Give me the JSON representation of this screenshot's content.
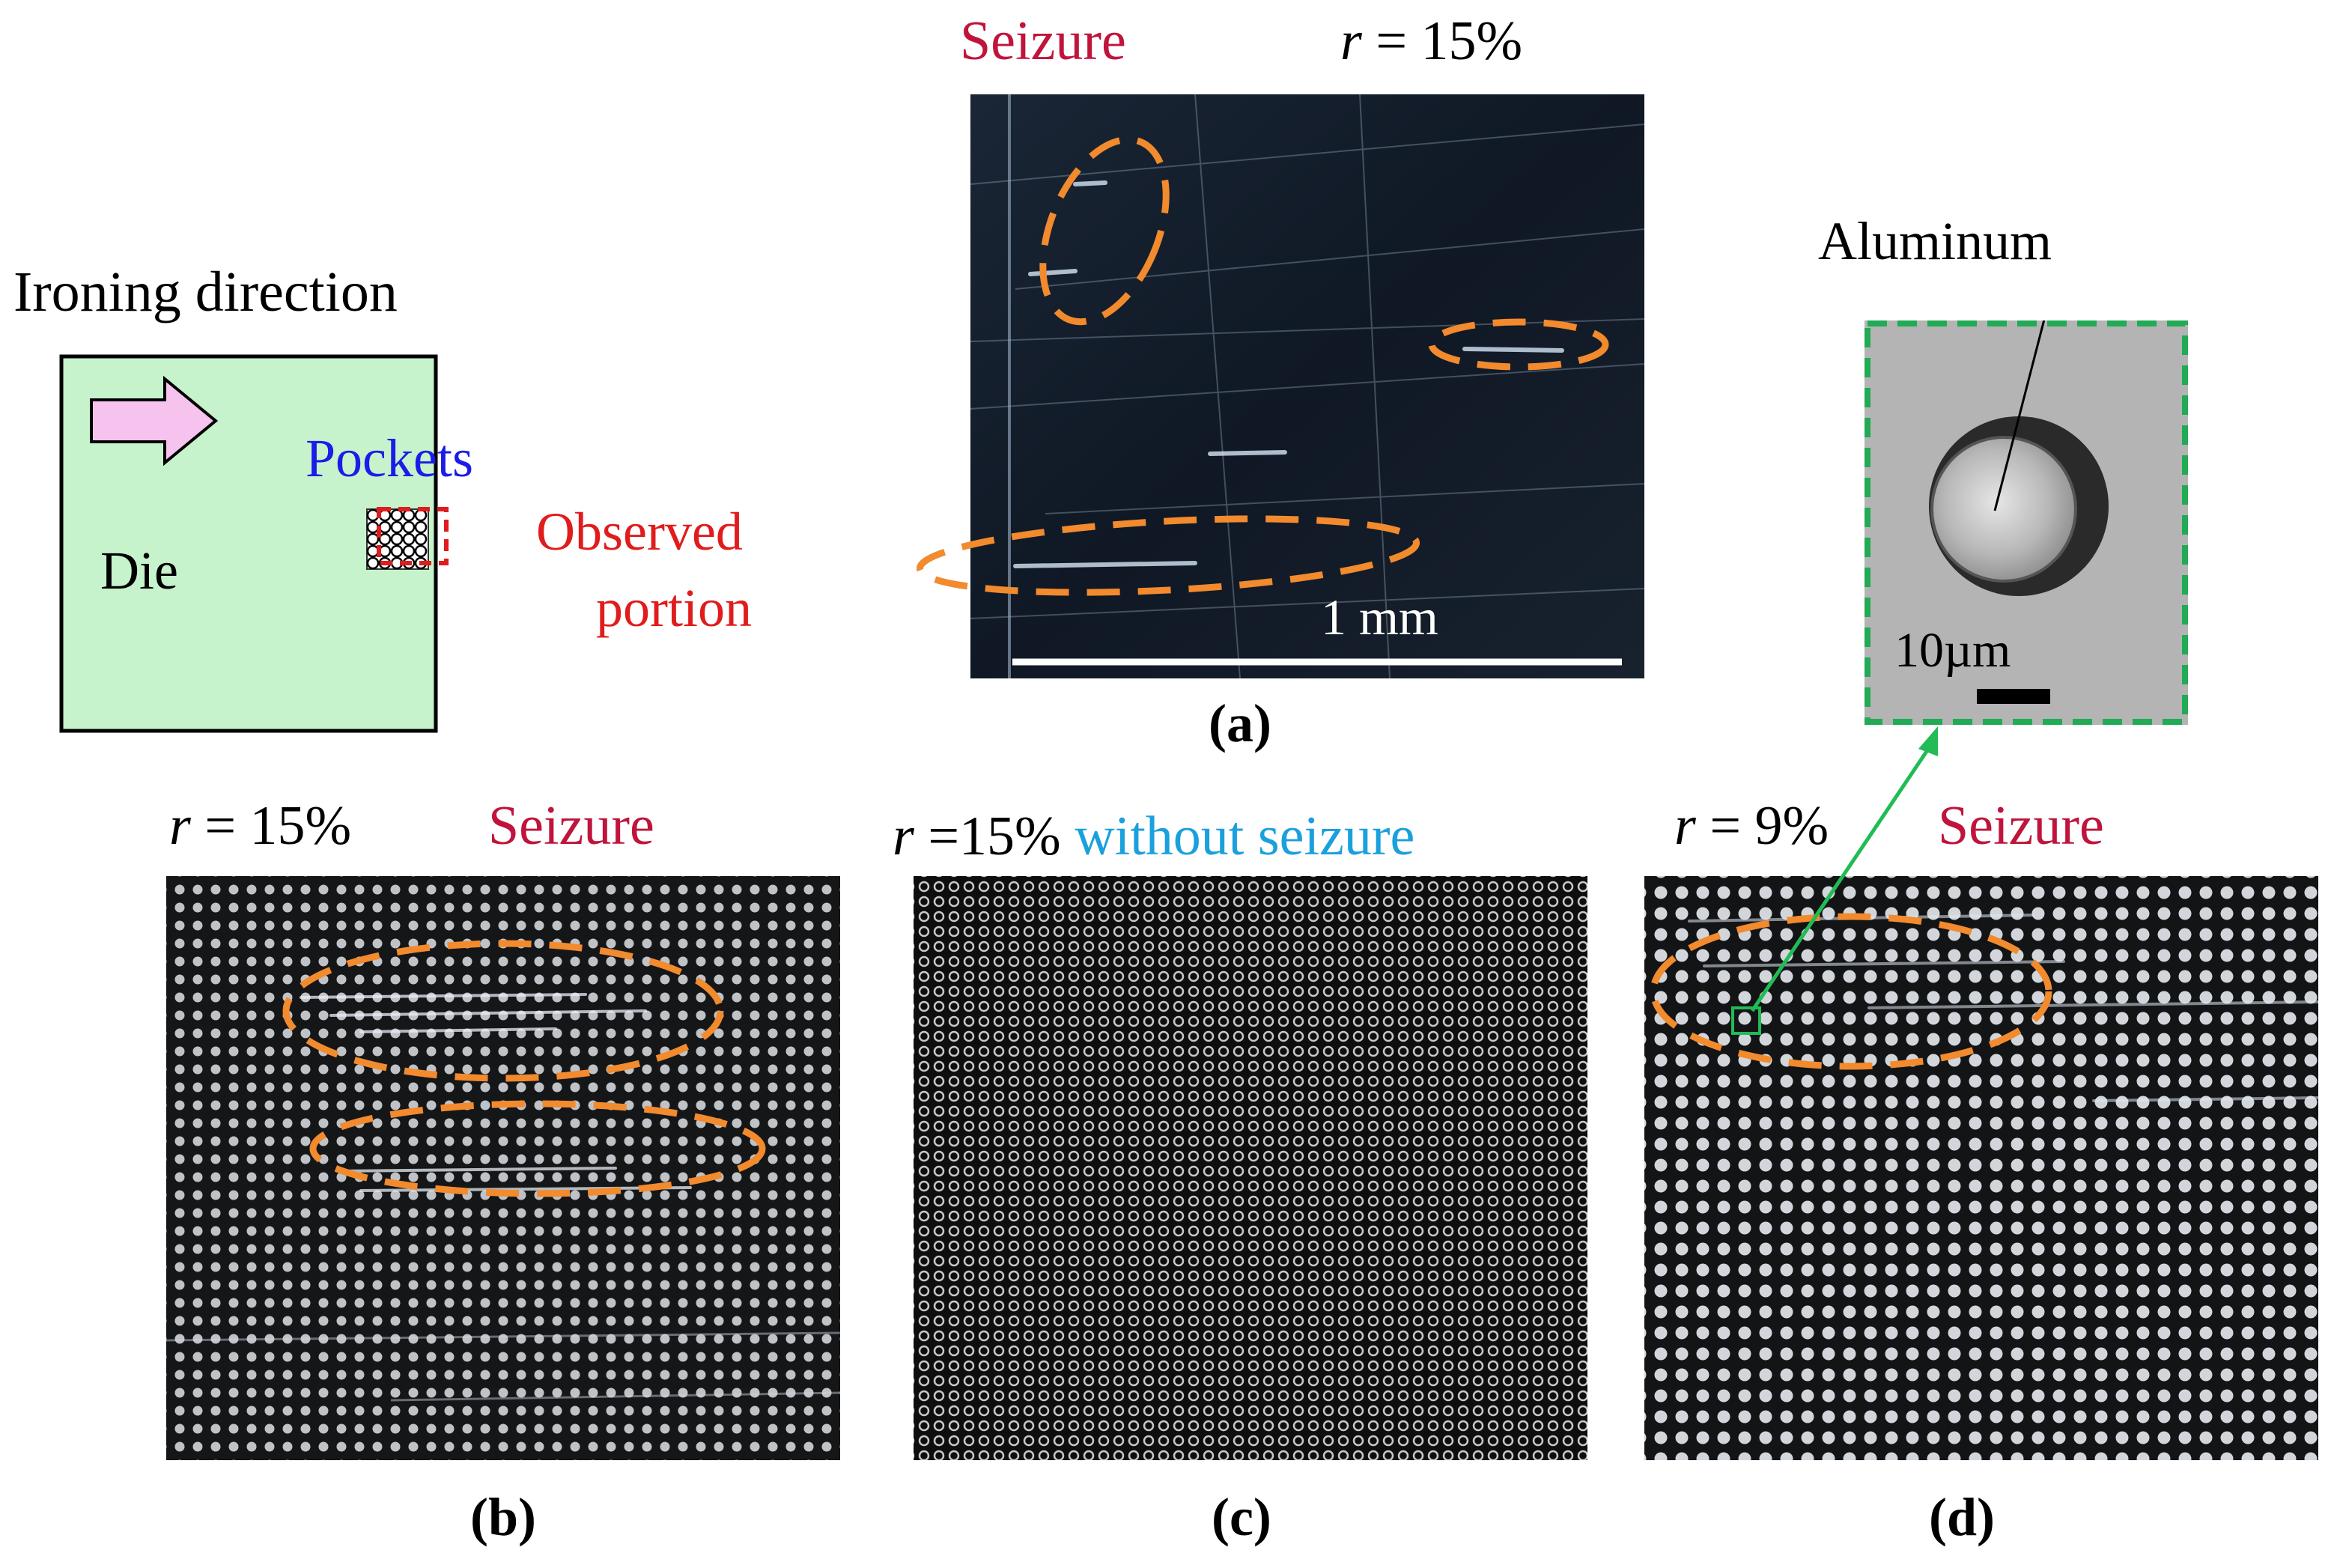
{
  "schematic": {
    "ironing_direction": "Ironing direction",
    "pockets": "Pockets",
    "die": "Die",
    "observed_line1": "Observed",
    "observed_line2": "portion"
  },
  "panel_a": {
    "label": "(a)",
    "seizure": "Seizure",
    "r_var": "r",
    "r_value": " = 15%",
    "scale_bar": "1 mm"
  },
  "inset": {
    "aluminum": "Aluminum",
    "scale_bar": "10µm"
  },
  "panel_b": {
    "label": "(b)",
    "r_var": "r",
    "r_value": " = 15%",
    "seizure": "Seizure"
  },
  "panel_c": {
    "label": "(c)",
    "r_var": "r",
    "r_value": " =15%",
    "without_seizure": " without seizure"
  },
  "panel_d": {
    "label": "(d)",
    "r_var": "r",
    "r_value": " = 9%",
    "seizure": "Seizure"
  },
  "colors": {
    "die_fill": "#c6f2cc",
    "arrow_fill": "#f6c3ef",
    "pockets_text": "#1c1ce8",
    "observed_text": "#e01c1c",
    "seizure_text": "#c0143c",
    "without_seizure_text": "#1aa0dd",
    "ellipse": "#f28a2e",
    "inset_border": "#22aa55",
    "pointer_arrow": "#22bb55"
  },
  "icons": {
    "ironing_arrow": "right-arrow-icon"
  }
}
